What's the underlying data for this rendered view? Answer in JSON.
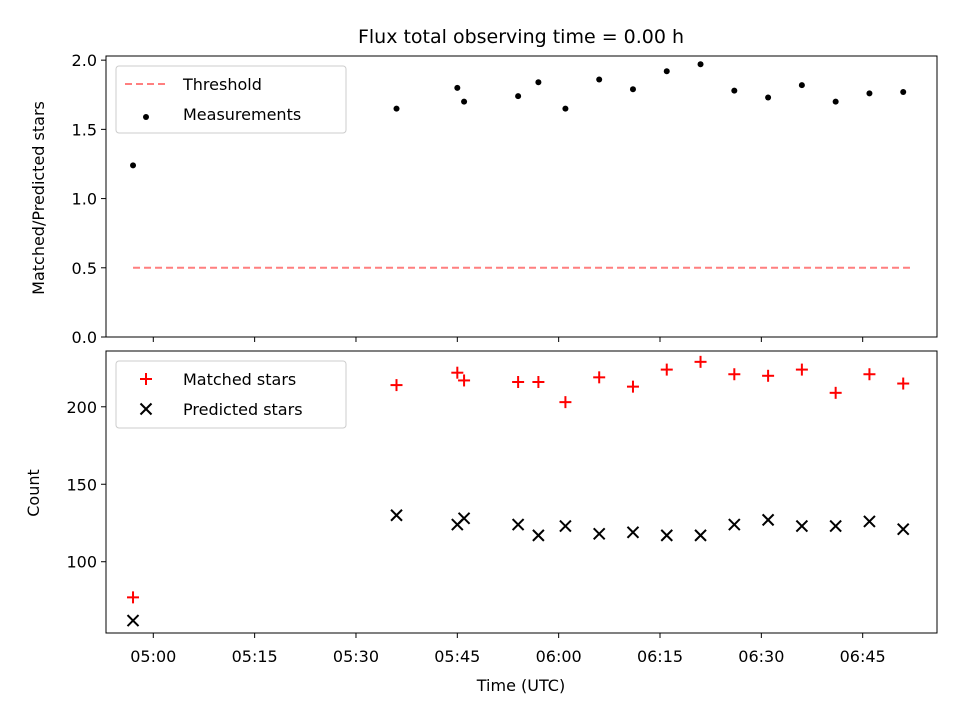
{
  "title": "Flux total observing time = 0.00 h",
  "xlabel": "Time (UTC)",
  "x_ticks": [
    "05:00",
    "05:15",
    "05:30",
    "05:45",
    "06:00",
    "06:15",
    "06:30",
    "06:45"
  ],
  "colors": {
    "threshold": "#ff7f7f",
    "measurements": "#000000",
    "matched": "#ff0000",
    "predicted": "#000000"
  },
  "chart_data": [
    {
      "type": "scatter",
      "ylabel": "Matched/Predicted stars",
      "xlim": [
        "04:53",
        "06:56"
      ],
      "ylim": [
        0,
        2.03
      ],
      "y_ticks": [
        "0.0",
        "0.5",
        "1.0",
        "1.5",
        "2.0"
      ],
      "legend_position": "top-left",
      "threshold": {
        "name": "Threshold",
        "value": 0.5,
        "x": [
          "04:57",
          "06:52"
        ]
      },
      "series": [
        {
          "name": "Measurements",
          "x": [
            "04:57",
            "05:36",
            "05:45",
            "05:46",
            "05:54",
            "05:57",
            "06:01",
            "06:06",
            "06:11",
            "06:16",
            "06:21",
            "06:26",
            "06:31",
            "06:36",
            "06:41",
            "06:46",
            "06:51"
          ],
          "y": [
            1.24,
            1.65,
            1.8,
            1.7,
            1.74,
            1.84,
            1.65,
            1.86,
            1.79,
            1.92,
            1.97,
            1.78,
            1.73,
            1.82,
            1.7,
            1.76,
            1.77
          ]
        }
      ]
    },
    {
      "type": "scatter",
      "ylabel": "Count",
      "xlim": [
        "04:53",
        "06:56"
      ],
      "ylim": [
        54,
        236
      ],
      "y_ticks": [
        "100",
        "150",
        "200"
      ],
      "legend_position": "top-left",
      "series": [
        {
          "name": "Matched stars",
          "x": [
            "04:57",
            "05:36",
            "05:45",
            "05:46",
            "05:54",
            "05:57",
            "06:01",
            "06:06",
            "06:11",
            "06:16",
            "06:21",
            "06:26",
            "06:31",
            "06:36",
            "06:41",
            "06:46",
            "06:51"
          ],
          "y": [
            77,
            214,
            222,
            217,
            216,
            216,
            203,
            219,
            213,
            224,
            229,
            221,
            220,
            224,
            209,
            221,
            215
          ]
        },
        {
          "name": "Predicted stars",
          "x": [
            "04:57",
            "05:36",
            "05:45",
            "05:46",
            "05:54",
            "05:57",
            "06:01",
            "06:06",
            "06:11",
            "06:16",
            "06:21",
            "06:26",
            "06:31",
            "06:36",
            "06:41",
            "06:46",
            "06:51"
          ],
          "y": [
            62,
            130,
            124,
            128,
            124,
            117,
            123,
            118,
            119,
            117,
            117,
            124,
            127,
            123,
            123,
            126,
            121
          ]
        }
      ]
    }
  ]
}
